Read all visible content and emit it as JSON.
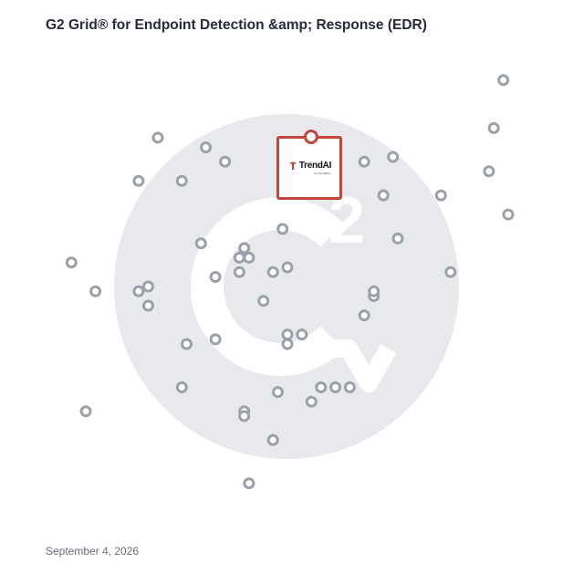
{
  "title": "G2 Grid® for Endpoint Detection &amp; Response (EDR)",
  "date": "September 4, 2026",
  "highlight": {
    "brand": "TrendAI",
    "tagline": "by TrendMicro",
    "icon": "trendai-logo-icon",
    "x": 6.5,
    "y": 7.35,
    "color": "#c1463c"
  },
  "watermark": {
    "icon": "g2-logo-icon",
    "color": "#e8e9ec"
  },
  "colors": {
    "top_left_border": "#5a4fc0",
    "top_right_border": "#ea5a3a",
    "bottom_left_border": "#2f9bd8",
    "bottom_right_border": "#7b3fb0",
    "dot_stroke": "#9ca0ab"
  },
  "chart_data": {
    "type": "scatter",
    "title": "G2 Grid® for Endpoint Detection &amp; Response (EDR)",
    "xlim": [
      0,
      10
    ],
    "ylim": [
      0,
      10
    ],
    "x_divider": 5,
    "y_divider": 5,
    "grid": false,
    "legend": "none",
    "points": [
      {
        "x": 9.5,
        "y": 9.3
      },
      {
        "x": 9.3,
        "y": 8.3
      },
      {
        "x": 9.2,
        "y": 7.4
      },
      {
        "x": 9.6,
        "y": 6.5
      },
      {
        "x": 8.2,
        "y": 6.9
      },
      {
        "x": 7.2,
        "y": 7.7
      },
      {
        "x": 6.6,
        "y": 7.6
      },
      {
        "x": 7.0,
        "y": 6.9
      },
      {
        "x": 7.3,
        "y": 6.0
      },
      {
        "x": 8.4,
        "y": 5.3
      },
      {
        "x": 6.8,
        "y": 4.8
      },
      {
        "x": 6.8,
        "y": 4.9
      },
      {
        "x": 6.6,
        "y": 4.4
      },
      {
        "x": 2.3,
        "y": 8.1
      },
      {
        "x": 3.3,
        "y": 7.9
      },
      {
        "x": 3.7,
        "y": 7.6
      },
      {
        "x": 1.9,
        "y": 7.2
      },
      {
        "x": 2.8,
        "y": 7.2
      },
      {
        "x": 4.9,
        "y": 6.2
      },
      {
        "x": 3.2,
        "y": 5.9
      },
      {
        "x": 4.1,
        "y": 5.8
      },
      {
        "x": 4.2,
        "y": 5.6
      },
      {
        "x": 4.0,
        "y": 5.6
      },
      {
        "x": 3.5,
        "y": 5.2
      },
      {
        "x": 4.0,
        "y": 5.3
      },
      {
        "x": 4.7,
        "y": 5.3
      },
      {
        "x": 5.0,
        "y": 5.4
      },
      {
        "x": 0.5,
        "y": 5.5
      },
      {
        "x": 1.0,
        "y": 4.9
      },
      {
        "x": 1.9,
        "y": 4.9
      },
      {
        "x": 2.1,
        "y": 5.0
      },
      {
        "x": 2.1,
        "y": 4.6
      },
      {
        "x": 4.5,
        "y": 4.7
      },
      {
        "x": 3.5,
        "y": 3.9
      },
      {
        "x": 5.0,
        "y": 4.0
      },
      {
        "x": 5.3,
        "y": 4.0
      },
      {
        "x": 5.0,
        "y": 3.8
      },
      {
        "x": 2.9,
        "y": 3.8
      },
      {
        "x": 2.8,
        "y": 2.9
      },
      {
        "x": 4.8,
        "y": 2.8
      },
      {
        "x": 5.5,
        "y": 2.6
      },
      {
        "x": 5.7,
        "y": 2.9
      },
      {
        "x": 6.0,
        "y": 2.9
      },
      {
        "x": 6.3,
        "y": 2.9
      },
      {
        "x": 4.1,
        "y": 2.4
      },
      {
        "x": 4.1,
        "y": 2.3
      },
      {
        "x": 0.8,
        "y": 2.4
      },
      {
        "x": 4.7,
        "y": 1.8
      },
      {
        "x": 4.2,
        "y": 0.9
      }
    ]
  }
}
